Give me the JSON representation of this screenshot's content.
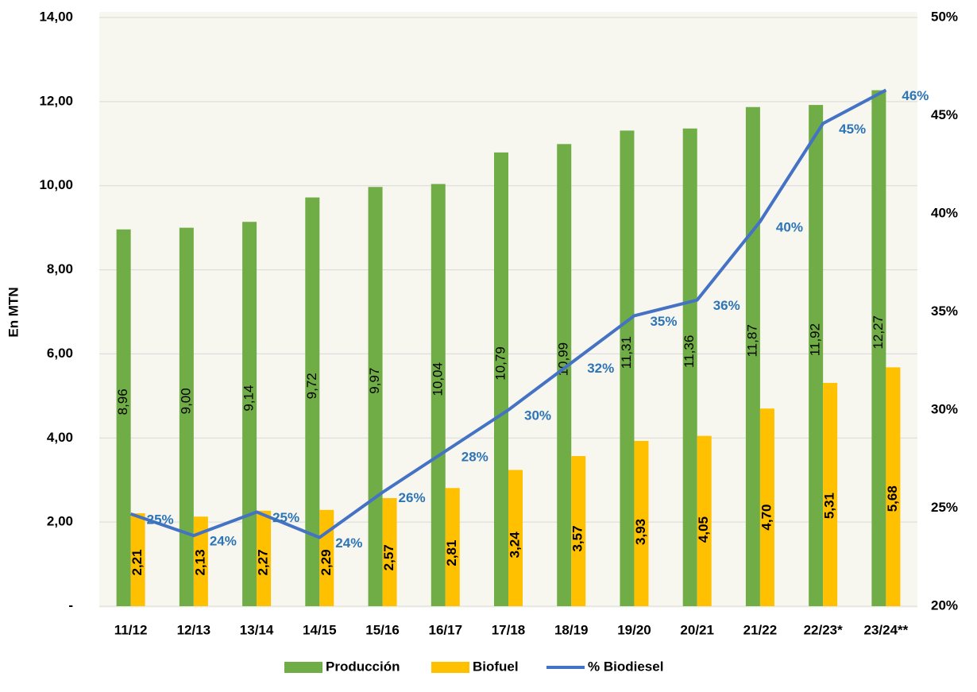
{
  "chart_data": {
    "type": "bar",
    "y_label": "En MTN",
    "categories": [
      "11/12",
      "12/13",
      "13/14",
      "14/15",
      "15/16",
      "16/17",
      "17/18",
      "18/19",
      "19/20",
      "20/21",
      "21/22",
      "22/23*",
      "23/24**"
    ],
    "series": [
      {
        "name": "Producción",
        "type": "bar",
        "color": "#70ad47",
        "values": [
          8.96,
          9.0,
          9.14,
          9.72,
          9.97,
          10.04,
          10.79,
          10.99,
          11.31,
          11.36,
          11.87,
          11.92,
          12.27
        ],
        "value_labels": [
          "8,96",
          "9,00",
          "9,14",
          "9,72",
          "9,97",
          "10,04",
          "10,79",
          "10,99",
          "11,31",
          "11,36",
          "11,87",
          "11,92",
          "12,27"
        ]
      },
      {
        "name": "Biofuel",
        "type": "bar",
        "color": "#ffc000",
        "values": [
          2.21,
          2.13,
          2.27,
          2.29,
          2.57,
          2.81,
          3.24,
          3.57,
          3.93,
          4.05,
          4.7,
          5.31,
          5.68
        ],
        "value_labels": [
          "2,21",
          "2,13",
          "2,27",
          "2,29",
          "2,57",
          "2,81",
          "3,24",
          "3,57",
          "3,93",
          "4,05",
          "4,70",
          "5,31",
          "5,68"
        ]
      },
      {
        "name": "% Biodiesel",
        "type": "line",
        "axis": "y2",
        "color": "#4472c4",
        "label_color": "#2e75b6",
        "values": [
          24.7,
          23.6,
          24.8,
          23.5,
          25.8,
          27.9,
          30.0,
          32.4,
          34.8,
          35.6,
          39.6,
          44.6,
          46.3
        ],
        "value_labels": [
          "25%",
          "24%",
          "25%",
          "24%",
          "26%",
          "28%",
          "30%",
          "32%",
          "35%",
          "36%",
          "40%",
          "45%",
          "46%"
        ]
      }
    ],
    "ylim": [
      0,
      14
    ],
    "yticks": [
      {
        "value": 0,
        "label": "-"
      },
      {
        "value": 2,
        "label": "2,00"
      },
      {
        "value": 4,
        "label": "4,00"
      },
      {
        "value": 6,
        "label": "6,00"
      },
      {
        "value": 8,
        "label": "8,00"
      },
      {
        "value": 10,
        "label": "10,00"
      },
      {
        "value": 12,
        "label": "12,00"
      },
      {
        "value": 14,
        "label": "14,00"
      }
    ],
    "y2lim": [
      20,
      50
    ],
    "y2ticks": [
      {
        "value": 20,
        "label": "20%"
      },
      {
        "value": 25,
        "label": "25%"
      },
      {
        "value": 30,
        "label": "30%"
      },
      {
        "value": 35,
        "label": "35%"
      },
      {
        "value": 40,
        "label": "40%"
      },
      {
        "value": 45,
        "label": "45%"
      },
      {
        "value": 50,
        "label": "50%"
      }
    ],
    "grid": true,
    "legend": "bottom"
  }
}
